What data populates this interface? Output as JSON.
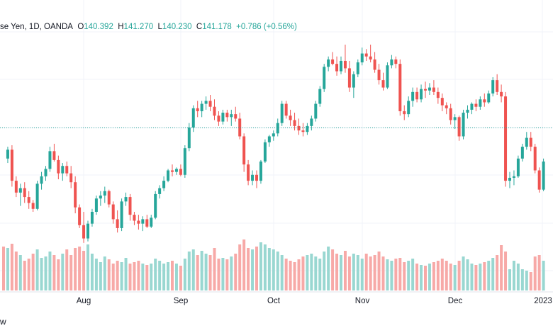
{
  "header": {
    "symbol_text": "se Yen, 1D, OANDA",
    "o_label": "O",
    "o_value": "140.392",
    "h_label": "H",
    "h_value": "141.270",
    "l_label": "L",
    "l_value": "140.230",
    "c_label": "C",
    "c_value": "141.178",
    "change": "+0.786 (+0.56%)"
  },
  "footer_text": "w",
  "colors": {
    "up": "#26a69a",
    "down": "#ef5350",
    "up_volume": "#99d7d1",
    "down_volume": "#f7a9a7",
    "grid": "#f0f3fa",
    "axis_text": "#131722",
    "price_line": "#26a69a"
  },
  "chart_data": {
    "type": "candlestick",
    "x_tick_labels": [
      "Aug",
      "Sep",
      "Oct",
      "Nov",
      "Dec",
      "2023"
    ],
    "current_price": 141.178,
    "grid": true,
    "candles": [
      [
        null,
        null,
        null,
        139.1,
        0.62
      ],
      [
        139.1,
        139.9,
        138.8,
        139.7,
        0.6
      ],
      [
        139.7,
        140.0,
        137.2,
        137.6,
        0.66
      ],
      [
        137.6,
        137.9,
        136.5,
        136.8,
        0.55
      ],
      [
        136.8,
        137.4,
        135.9,
        137.1,
        0.5
      ],
      [
        137.1,
        137.5,
        136.1,
        136.5,
        0.42
      ],
      [
        136.5,
        136.9,
        135.7,
        136.1,
        0.45
      ],
      [
        136.1,
        136.3,
        135.5,
        135.7,
        0.52
      ],
      [
        135.7,
        137.6,
        135.6,
        137.4,
        0.58
      ],
      [
        137.4,
        138.2,
        137.0,
        137.9,
        0.46
      ],
      [
        137.9,
        138.6,
        137.6,
        138.4,
        0.48
      ],
      [
        138.4,
        139.9,
        138.2,
        139.6,
        0.55
      ],
      [
        139.6,
        140.1,
        138.9,
        139.0,
        0.5
      ],
      [
        139.0,
        139.3,
        137.7,
        138.1,
        0.44
      ],
      [
        138.1,
        138.8,
        137.6,
        138.6,
        0.52
      ],
      [
        138.6,
        138.9,
        137.9,
        138.1,
        0.58
      ],
      [
        138.1,
        138.6,
        137.1,
        137.5,
        0.5
      ],
      [
        137.5,
        137.9,
        135.4,
        135.8,
        0.6
      ],
      [
        135.8,
        136.0,
        134.4,
        134.6,
        0.62
      ],
      [
        134.6,
        135.5,
        133.4,
        133.7,
        0.56
      ],
      [
        133.7,
        134.9,
        133.5,
        134.7,
        0.65
      ],
      [
        134.7,
        135.7,
        134.5,
        135.5,
        0.52
      ],
      [
        135.5,
        136.6,
        135.3,
        136.4,
        0.45
      ],
      [
        136.4,
        136.9,
        135.9,
        136.6,
        0.4
      ],
      [
        136.6,
        137.2,
        136.1,
        136.9,
        0.48
      ],
      [
        136.9,
        137.0,
        135.8,
        136.0,
        0.44
      ],
      [
        136.0,
        136.2,
        134.7,
        135.0,
        0.38
      ],
      [
        135.0,
        135.6,
        134.1,
        134.4,
        0.42
      ],
      [
        134.4,
        136.4,
        134.2,
        136.2,
        0.4
      ],
      [
        136.2,
        136.8,
        135.9,
        136.5,
        0.46
      ],
      [
        136.5,
        136.7,
        134.9,
        135.3,
        0.38
      ],
      [
        135.3,
        135.5,
        134.6,
        134.9,
        0.4
      ],
      [
        134.9,
        135.3,
        134.3,
        134.7,
        0.42
      ],
      [
        134.7,
        135.2,
        134.2,
        135.0,
        0.38
      ],
      [
        135.0,
        135.3,
        134.4,
        134.5,
        0.36
      ],
      [
        134.5,
        135.3,
        134.4,
        135.1,
        0.38
      ],
      [
        135.1,
        136.9,
        135.0,
        136.7,
        0.45
      ],
      [
        136.7,
        137.3,
        136.4,
        137.1,
        0.42
      ],
      [
        137.1,
        137.9,
        136.9,
        137.6,
        0.38
      ],
      [
        137.6,
        138.4,
        137.5,
        138.3,
        0.4
      ],
      [
        138.3,
        138.7,
        137.9,
        138.2,
        0.42
      ],
      [
        138.2,
        138.5,
        138.0,
        138.4,
        0.38
      ],
      [
        138.4,
        138.7,
        137.9,
        138.0,
        0.35
      ],
      [
        138.0,
        140.0,
        137.8,
        139.8,
        0.45
      ],
      [
        139.8,
        141.5,
        139.6,
        141.2,
        0.55
      ],
      [
        141.2,
        142.7,
        140.9,
        142.5,
        0.58
      ],
      [
        142.5,
        143.0,
        141.9,
        142.3,
        0.5
      ],
      [
        142.3,
        143.0,
        141.9,
        142.8,
        0.56
      ],
      [
        142.8,
        143.3,
        142.4,
        143.0,
        0.52
      ],
      [
        143.0,
        143.4,
        142.3,
        142.6,
        0.5
      ],
      [
        142.6,
        143.1,
        141.7,
        142.0,
        0.6
      ],
      [
        142.0,
        142.3,
        141.3,
        141.6,
        0.45
      ],
      [
        141.6,
        142.4,
        141.4,
        142.2,
        0.46
      ],
      [
        142.2,
        142.4,
        141.6,
        141.9,
        0.44
      ],
      [
        141.9,
        142.4,
        141.3,
        142.1,
        0.48
      ],
      [
        142.1,
        142.6,
        141.6,
        141.8,
        0.52
      ],
      [
        141.8,
        142.2,
        140.4,
        140.6,
        0.65
      ],
      [
        140.6,
        140.8,
        138.2,
        138.7,
        0.72
      ],
      [
        138.7,
        139.0,
        137.3,
        137.6,
        0.6
      ],
      [
        137.6,
        138.3,
        137.3,
        138.0,
        0.58
      ],
      [
        138.0,
        138.3,
        137.1,
        137.6,
        0.62
      ],
      [
        137.6,
        139.0,
        137.4,
        138.9,
        0.68
      ],
      [
        138.9,
        140.4,
        138.8,
        140.2,
        0.65
      ],
      [
        140.2,
        140.7,
        139.9,
        140.6,
        0.6
      ],
      [
        140.6,
        141.0,
        140.3,
        140.8,
        0.58
      ],
      [
        140.8,
        141.8,
        140.6,
        141.5,
        0.55
      ],
      [
        141.5,
        143.0,
        141.3,
        142.8,
        0.5
      ],
      [
        142.8,
        143.0,
        141.8,
        142.0,
        0.45
      ],
      [
        142.0,
        142.4,
        141.3,
        141.7,
        0.42
      ],
      [
        141.7,
        142.2,
        141.0,
        141.3,
        0.4
      ],
      [
        141.3,
        141.8,
        140.7,
        141.0,
        0.44
      ],
      [
        141.0,
        141.5,
        140.6,
        140.9,
        0.48
      ],
      [
        140.9,
        141.5,
        140.7,
        141.3,
        0.5
      ],
      [
        141.3,
        142.0,
        141.0,
        141.8,
        0.52
      ],
      [
        141.8,
        143.0,
        141.6,
        142.8,
        0.48
      ],
      [
        142.8,
        144.0,
        142.6,
        143.8,
        0.45
      ],
      [
        143.8,
        145.5,
        143.6,
        145.3,
        0.55
      ],
      [
        145.3,
        146.0,
        145.0,
        145.8,
        0.62
      ],
      [
        145.8,
        146.3,
        145.4,
        145.5,
        0.58
      ],
      [
        145.5,
        146.0,
        144.7,
        145.0,
        0.52
      ],
      [
        145.0,
        146.0,
        144.8,
        145.7,
        0.5
      ],
      [
        145.7,
        146.8,
        144.9,
        145.2,
        0.56
      ],
      [
        145.2,
        145.7,
        143.6,
        143.9,
        0.48
      ],
      [
        143.9,
        145.0,
        143.2,
        144.8,
        0.52
      ],
      [
        144.8,
        145.8,
        144.6,
        145.6,
        0.5
      ],
      [
        145.6,
        146.6,
        145.4,
        146.2,
        0.45
      ],
      [
        146.2,
        146.5,
        145.7,
        146.0,
        0.52
      ],
      [
        146.0,
        146.8,
        145.6,
        145.8,
        0.48
      ],
      [
        145.8,
        146.3,
        144.9,
        145.1,
        0.5
      ],
      [
        145.1,
        145.5,
        144.1,
        144.4,
        0.55
      ],
      [
        144.4,
        144.9,
        143.7,
        143.9,
        0.48
      ],
      [
        143.9,
        145.6,
        143.8,
        145.4,
        0.44
      ],
      [
        145.4,
        146.1,
        145.2,
        145.8,
        0.42
      ],
      [
        145.8,
        146.0,
        145.2,
        145.5,
        0.45
      ],
      [
        145.5,
        145.8,
        142.0,
        142.3,
        0.46
      ],
      [
        142.3,
        142.7,
        141.7,
        142.1,
        0.4
      ],
      [
        142.1,
        143.3,
        141.9,
        143.0,
        0.42
      ],
      [
        143.0,
        143.9,
        142.6,
        143.6,
        0.45
      ],
      [
        143.6,
        143.9,
        142.9,
        143.1,
        0.38
      ],
      [
        143.1,
        144.1,
        142.9,
        143.8,
        0.36
      ],
      [
        143.8,
        144.3,
        143.2,
        143.7,
        0.35
      ],
      [
        143.7,
        144.2,
        143.4,
        143.9,
        0.38
      ],
      [
        143.9,
        144.4,
        143.4,
        143.6,
        0.4
      ],
      [
        143.6,
        143.9,
        142.8,
        143.2,
        0.42
      ],
      [
        143.2,
        143.5,
        142.3,
        142.7,
        0.45
      ],
      [
        142.7,
        142.9,
        142.1,
        142.5,
        0.42
      ],
      [
        142.5,
        142.8,
        141.4,
        141.7,
        0.38
      ],
      [
        141.7,
        142.1,
        141.1,
        141.9,
        0.36
      ],
      [
        141.9,
        142.0,
        140.3,
        140.6,
        0.42
      ],
      [
        140.6,
        142.4,
        140.4,
        142.2,
        0.48
      ],
      [
        142.2,
        142.7,
        141.8,
        142.4,
        0.44
      ],
      [
        142.4,
        142.9,
        142.1,
        142.8,
        0.38
      ],
      [
        142.8,
        143.1,
        142.3,
        142.6,
        0.36
      ],
      [
        142.6,
        143.3,
        142.4,
        143.1,
        0.38
      ],
      [
        143.1,
        143.5,
        142.6,
        142.9,
        0.4
      ],
      [
        142.9,
        143.7,
        142.8,
        143.5,
        0.42
      ],
      [
        143.5,
        144.6,
        143.3,
        144.4,
        0.46
      ],
      [
        144.4,
        144.8,
        143.4,
        143.6,
        0.5
      ],
      [
        143.6,
        144.1,
        142.9,
        143.3,
        0.64
      ],
      [
        143.3,
        143.6,
        137.2,
        137.6,
        0.55
      ],
      [
        137.6,
        138.2,
        137.1,
        137.8,
        0.3
      ],
      [
        137.8,
        138.3,
        137.3,
        137.9,
        0.42
      ],
      [
        137.9,
        139.3,
        137.8,
        139.1,
        0.38
      ],
      [
        139.1,
        140.1,
        138.9,
        139.9,
        0.3
      ],
      [
        139.9,
        140.9,
        139.7,
        140.5,
        0.28
      ],
      [
        140.5,
        140.9,
        139.6,
        139.9,
        0.26
      ],
      [
        139.9,
        140.1,
        138.1,
        138.3,
        0.48
      ],
      [
        138.3,
        138.5,
        136.8,
        137.0,
        0.5
      ],
      [
        137.0,
        139.1,
        136.9,
        138.9,
        0.42
      ]
    ]
  }
}
